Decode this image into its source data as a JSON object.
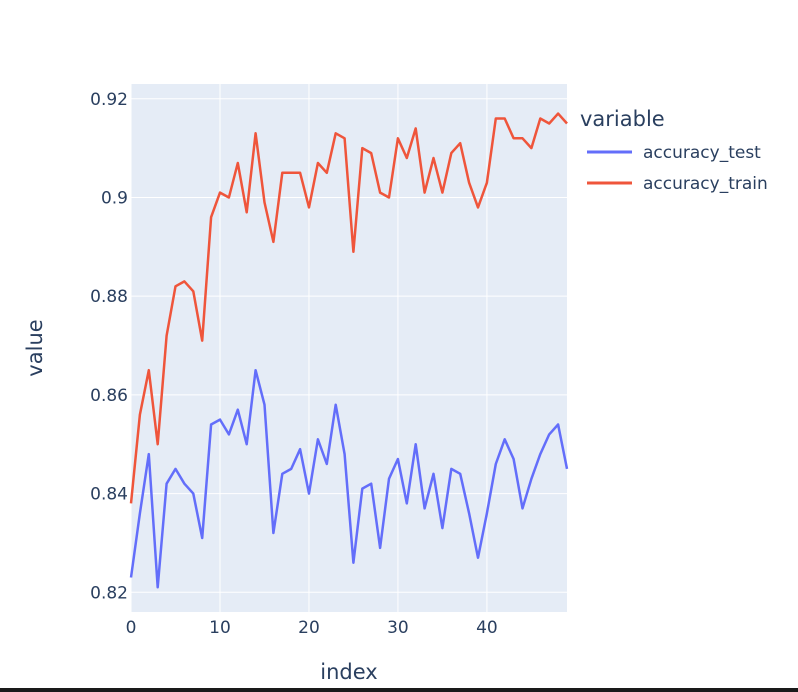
{
  "chart_data": {
    "type": "line",
    "xlabel": "index",
    "ylabel": "value",
    "legend_title": "variable",
    "legend_position": "right",
    "grid": true,
    "xlim": [
      0,
      49
    ],
    "ylim": [
      0.816,
      0.923
    ],
    "x_ticks": [
      0,
      10,
      20,
      30,
      40
    ],
    "y_ticks": [
      0.82,
      0.84,
      0.86,
      0.88,
      0.9,
      0.92
    ],
    "x_tick_labels": [
      "0",
      "10",
      "20",
      "30",
      "40"
    ],
    "y_tick_labels": [
      "0.82",
      "0.84",
      "0.86",
      "0.88",
      "0.9",
      "0.92"
    ],
    "colors": {
      "plot_bg": "#e5ecf6",
      "grid": "#ffffff",
      "text": "#2a3f5f"
    },
    "x": [
      0,
      1,
      2,
      3,
      4,
      5,
      6,
      7,
      8,
      9,
      10,
      11,
      12,
      13,
      14,
      15,
      16,
      17,
      18,
      19,
      20,
      21,
      22,
      23,
      24,
      25,
      26,
      27,
      28,
      29,
      30,
      31,
      32,
      33,
      34,
      35,
      36,
      37,
      38,
      39,
      40,
      41,
      42,
      43,
      44,
      45,
      46,
      47,
      48,
      49
    ],
    "series": [
      {
        "name": "accuracy_test",
        "color": "#636efa",
        "values": [
          0.823,
          0.836,
          0.848,
          0.821,
          0.842,
          0.845,
          0.842,
          0.84,
          0.831,
          0.854,
          0.855,
          0.852,
          0.857,
          0.85,
          0.865,
          0.858,
          0.832,
          0.844,
          0.845,
          0.849,
          0.84,
          0.851,
          0.846,
          0.858,
          0.848,
          0.826,
          0.841,
          0.842,
          0.829,
          0.843,
          0.847,
          0.838,
          0.85,
          0.837,
          0.844,
          0.833,
          0.845,
          0.844,
          0.836,
          0.827,
          0.836,
          0.846,
          0.851,
          0.847,
          0.837,
          0.843,
          0.848,
          0.852,
          0.854,
          0.845
        ]
      },
      {
        "name": "accuracy_train",
        "color": "#ef553b",
        "values": [
          0.838,
          0.856,
          0.865,
          0.85,
          0.872,
          0.882,
          0.883,
          0.881,
          0.871,
          0.896,
          0.901,
          0.9,
          0.907,
          0.897,
          0.913,
          0.899,
          0.891,
          0.905,
          0.905,
          0.905,
          0.898,
          0.907,
          0.905,
          0.913,
          0.912,
          0.889,
          0.91,
          0.909,
          0.901,
          0.9,
          0.912,
          0.908,
          0.914,
          0.901,
          0.908,
          0.901,
          0.909,
          0.911,
          0.903,
          0.898,
          0.903,
          0.916,
          0.916,
          0.912,
          0.912,
          0.91,
          0.916,
          0.915,
          0.917,
          0.915
        ]
      }
    ]
  }
}
